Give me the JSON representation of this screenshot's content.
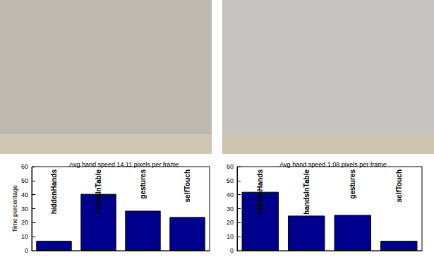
{
  "chart_data": [
    {
      "type": "bar",
      "title": "Avg hand speed 14.11 pixels per frame",
      "ylabel": "Time percentage",
      "categories": [
        "hiddenHands",
        "handsInTable",
        "gestures",
        "selfTouch"
      ],
      "values": [
        7,
        40.5,
        28.5,
        24
      ],
      "color": "#00008f",
      "ylim": [
        0,
        60
      ],
      "yticks": [
        0,
        10,
        20,
        30,
        40,
        50,
        60
      ],
      "grid": false
    },
    {
      "type": "bar",
      "title": "Avg hand speed 1.08 pixels per frame",
      "categories": [
        "hiddenHands",
        "handsInTable",
        "gestures",
        "selfTouch"
      ],
      "values": [
        42,
        25,
        25.5,
        7
      ],
      "color": "#00008f",
      "ylim": [
        0,
        60
      ],
      "yticks": [
        0,
        10,
        20,
        30,
        40,
        50,
        60
      ],
      "grid": false
    }
  ]
}
